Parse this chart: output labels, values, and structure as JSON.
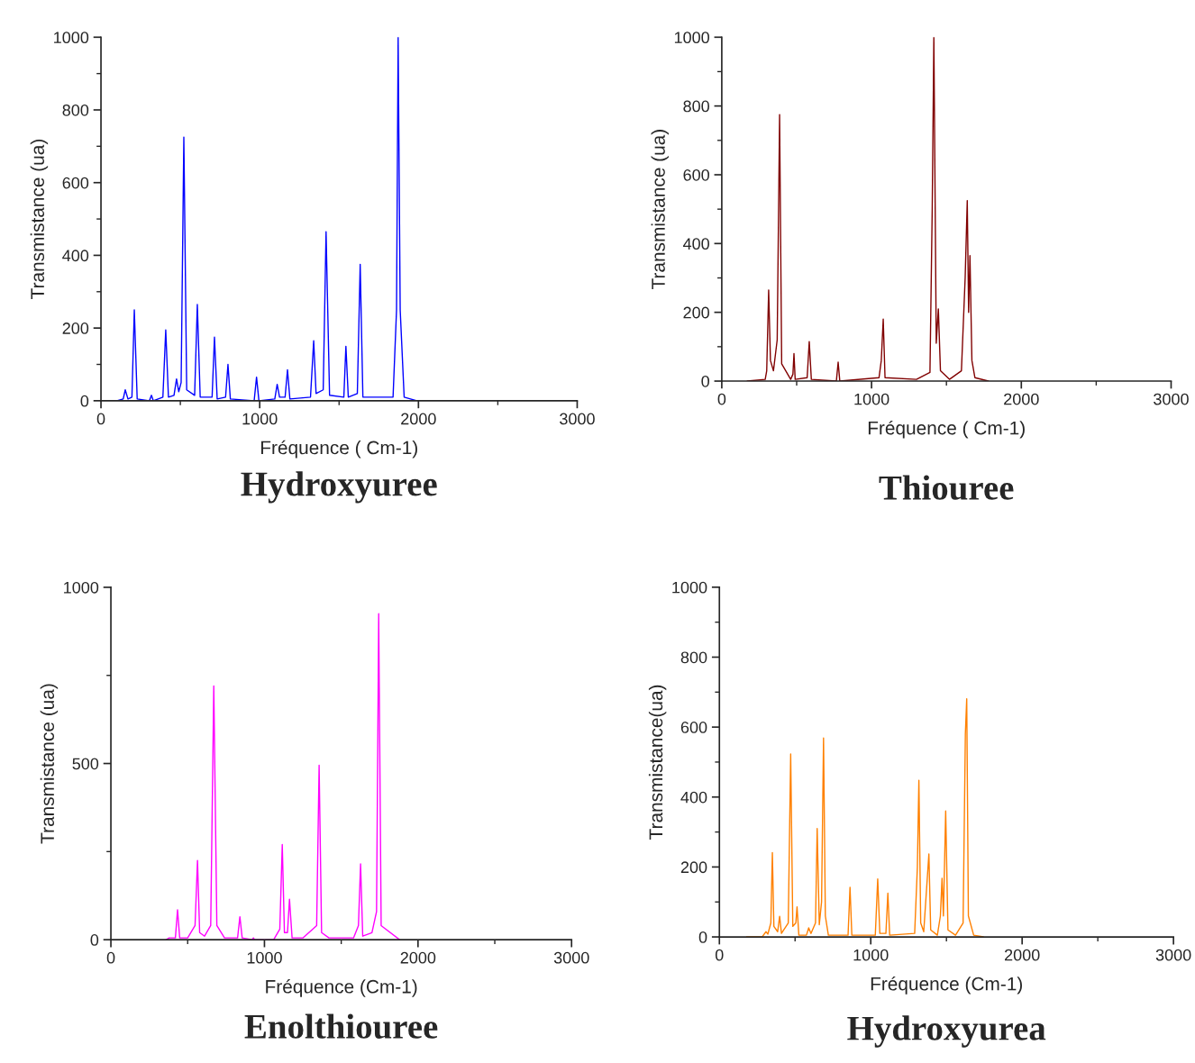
{
  "chart_data": [
    {
      "type": "line",
      "title": "Hydroxyuree",
      "xlabel": "Fréquence ( Cm-1)",
      "ylabel": "Transmistance (ua)",
      "xlim": [
        0,
        3000
      ],
      "ylim": [
        0,
        1000
      ],
      "xticks": [
        0,
        {
          "value": 500,
          "label": null
        },
        1000,
        {
          "value": 1500,
          "label": null
        },
        2000,
        {
          "value": 2500,
          "label": null
        },
        3000
      ],
      "yticks": [
        0,
        {
          "value": 100,
          "label": null
        },
        200,
        {
          "value": 300,
          "label": null
        },
        400,
        {
          "value": 500,
          "label": null
        },
        600,
        {
          "value": 700,
          "label": null
        },
        800,
        {
          "value": 900,
          "label": null
        },
        1000
      ],
      "grid": false,
      "legend": false,
      "marker": "none",
      "line_style": "solid",
      "series": [
        {
          "color": "#0000ff",
          "x": [
            100,
            140,
            153,
            170,
            195,
            210,
            228,
            305,
            318,
            330,
            390,
            408,
            425,
            460,
            476,
            490,
            505,
            522,
            540,
            590,
            607,
            625,
            700,
            715,
            732,
            785,
            800,
            815,
            965,
            980,
            995,
            1095,
            1110,
            1125,
            1160,
            1175,
            1190,
            1320,
            1340,
            1355,
            1400,
            1418,
            1440,
            1530,
            1543,
            1558,
            1615,
            1633,
            1650,
            1840,
            1862,
            1872,
            1885,
            1910,
            1990
          ],
          "values": [
            0,
            5,
            30,
            5,
            10,
            250,
            5,
            0,
            15,
            0,
            10,
            195,
            10,
            15,
            60,
            25,
            50,
            725,
            30,
            15,
            265,
            10,
            10,
            175,
            5,
            10,
            100,
            5,
            0,
            65,
            0,
            5,
            45,
            10,
            10,
            85,
            5,
            10,
            165,
            20,
            30,
            465,
            15,
            10,
            150,
            10,
            20,
            375,
            10,
            10,
            250,
            1000,
            250,
            10,
            0
          ]
        }
      ]
    },
    {
      "type": "line",
      "title": "Thiouree",
      "xlabel": "Fréquence ( Cm-1)",
      "ylabel": "Transmistance (ua)",
      "xlim": [
        0,
        3000
      ],
      "ylim": [
        0,
        1000
      ],
      "xticks": [
        0,
        {
          "value": 500,
          "label": null
        },
        1000,
        {
          "value": 1500,
          "label": null
        },
        2000,
        {
          "value": 2500,
          "label": null
        },
        3000
      ],
      "yticks": [
        0,
        {
          "value": 100,
          "label": null
        },
        200,
        {
          "value": 300,
          "label": null
        },
        400,
        {
          "value": 500,
          "label": null
        },
        600,
        {
          "value": 700,
          "label": null
        },
        800,
        {
          "value": 900,
          "label": null
        },
        1000
      ],
      "grid": false,
      "legend": false,
      "marker": "none",
      "line_style": "solid",
      "series": [
        {
          "color": "#800000",
          "x": [
            170,
            290,
            300,
            313,
            325,
            345,
            370,
            386,
            400,
            460,
            475,
            482,
            490,
            570,
            584,
            598,
            765,
            777,
            788,
            1050,
            1065,
            1078,
            1090,
            1300,
            1390,
            1405,
            1416,
            1425,
            1432,
            1446,
            1460,
            1520,
            1600,
            1625,
            1639,
            1648,
            1657,
            1670,
            1690,
            1780
          ],
          "values": [
            0,
            5,
            30,
            265,
            60,
            30,
            120,
            775,
            50,
            5,
            20,
            80,
            5,
            10,
            115,
            5,
            0,
            55,
            0,
            10,
            60,
            180,
            10,
            5,
            25,
            500,
            1000,
            500,
            110,
            210,
            30,
            5,
            30,
            300,
            525,
            200,
            365,
            60,
            10,
            0
          ]
        }
      ]
    },
    {
      "type": "line",
      "title": "Enolthiouree",
      "xlabel": "Fréquence (Cm-1)",
      "ylabel": "Transmistance (ua)",
      "xlim": [
        0,
        3000
      ],
      "ylim": [
        0,
        1000
      ],
      "xticks": [
        0,
        {
          "value": 500,
          "label": null
        },
        1000,
        {
          "value": 1500,
          "label": null
        },
        2000,
        {
          "value": 2500,
          "label": null
        },
        3000
      ],
      "yticks": [
        0,
        {
          "value": 250,
          "label": null
        },
        500,
        {
          "value": 750,
          "label": null
        },
        1000
      ],
      "grid": false,
      "legend": false,
      "marker": "none",
      "line_style": "solid",
      "series": [
        {
          "color": "#ff00ff",
          "x": [
            360,
            380,
            420,
            434,
            448,
            500,
            548,
            564,
            578,
            610,
            650,
            670,
            690,
            740,
            825,
            840,
            855,
            920,
            928,
            936,
            1060,
            1100,
            1116,
            1130,
            1150,
            1163,
            1180,
            1250,
            1340,
            1356,
            1372,
            1420,
            1580,
            1612,
            1626,
            1640,
            1700,
            1730,
            1744,
            1760,
            1880
          ],
          "values": [
            0,
            5,
            5,
            85,
            5,
            5,
            40,
            225,
            20,
            10,
            40,
            720,
            40,
            5,
            5,
            65,
            5,
            0,
            5,
            0,
            0,
            30,
            270,
            20,
            20,
            115,
            5,
            5,
            40,
            495,
            20,
            5,
            5,
            40,
            215,
            10,
            20,
            80,
            925,
            40,
            0
          ]
        }
      ]
    },
    {
      "type": "line",
      "title": "Hydroxyurea",
      "xlabel": "Fréquence (Cm-1)",
      "ylabel": "Transmistance(ua)",
      "xlim": [
        0,
        3000
      ],
      "ylim": [
        0,
        1000
      ],
      "xticks": [
        0,
        {
          "value": 500,
          "label": null
        },
        1000,
        {
          "value": 1500,
          "label": null
        },
        2000,
        {
          "value": 2500,
          "label": null
        },
        3000
      ],
      "yticks": [
        0,
        {
          "value": 100,
          "label": null
        },
        200,
        {
          "value": 300,
          "label": null
        },
        400,
        {
          "value": 500,
          "label": null
        },
        600,
        {
          "value": 700,
          "label": null
        },
        800,
        {
          "value": 900,
          "label": null
        },
        1000
      ],
      "grid": false,
      "legend": false,
      "marker": "none",
      "line_style": "solid",
      "series": [
        {
          "color": "#ff8000",
          "x": [
            180,
            190,
            282,
            308,
            320,
            340,
            350,
            360,
            385,
            398,
            410,
            455,
            471,
            485,
            505,
            513,
            525,
            575,
            590,
            605,
            635,
            646,
            660,
            675,
            688,
            700,
            720,
            850,
            863,
            875,
            1030,
            1046,
            1060,
            1100,
            1113,
            1125,
            1290,
            1308,
            1318,
            1330,
            1350,
            1384,
            1396,
            1440,
            1460,
            1471,
            1480,
            1495,
            1510,
            1560,
            1610,
            1625,
            1634,
            1645,
            1680,
            1744
          ],
          "values": [
            0,
            0,
            0,
            15,
            8,
            40,
            241,
            30,
            15,
            59,
            10,
            40,
            523,
            30,
            40,
            86,
            5,
            5,
            26,
            10,
            40,
            310,
            35,
            100,
            569,
            60,
            5,
            5,
            142,
            5,
            5,
            166,
            10,
            10,
            125,
            5,
            10,
            200,
            448,
            40,
            15,
            237,
            20,
            5,
            60,
            168,
            60,
            360,
            20,
            5,
            40,
            580,
            681,
            60,
            5,
            0
          ]
        }
      ]
    }
  ]
}
